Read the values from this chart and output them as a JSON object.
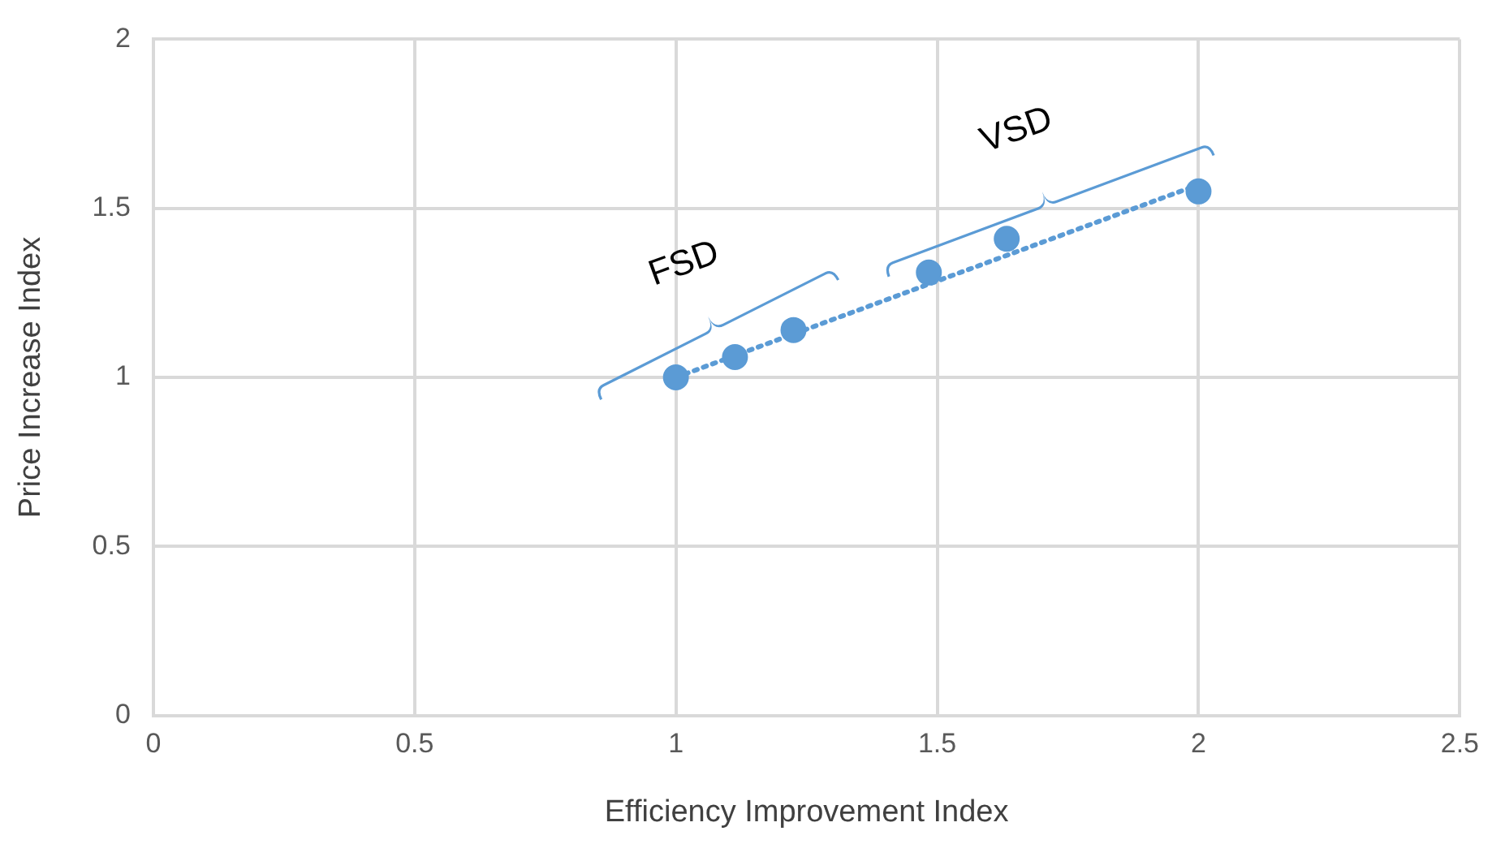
{
  "chart_data": {
    "type": "scatter",
    "xlabel": "Efficiency Improvement Index",
    "ylabel": "Price Increase Index",
    "xlim": [
      0,
      2.5
    ],
    "xticks": [
      0,
      0.5,
      1,
      1.5,
      2,
      2.5
    ],
    "ylim": [
      0,
      2
    ],
    "yticks": [
      0,
      0.5,
      1,
      1.5,
      2
    ],
    "grid": true,
    "legend": false,
    "marker": "circle",
    "series": [
      {
        "color": "#5b9bd5",
        "x": [
          1.0,
          1.113,
          1.225,
          1.484,
          1.633,
          2.0
        ],
        "values": [
          1.0,
          1.06,
          1.14,
          1.31,
          1.41,
          1.55
        ]
      },
      {
        "type": "line",
        "color": "#5b9bd5",
        "line_style": "dotted",
        "marker": "none",
        "x": [
          1,
          2
        ],
        "values": [
          1.0,
          1.57
        ]
      }
    ],
    "annotations": [
      "FSD",
      "VSD"
    ]
  }
}
